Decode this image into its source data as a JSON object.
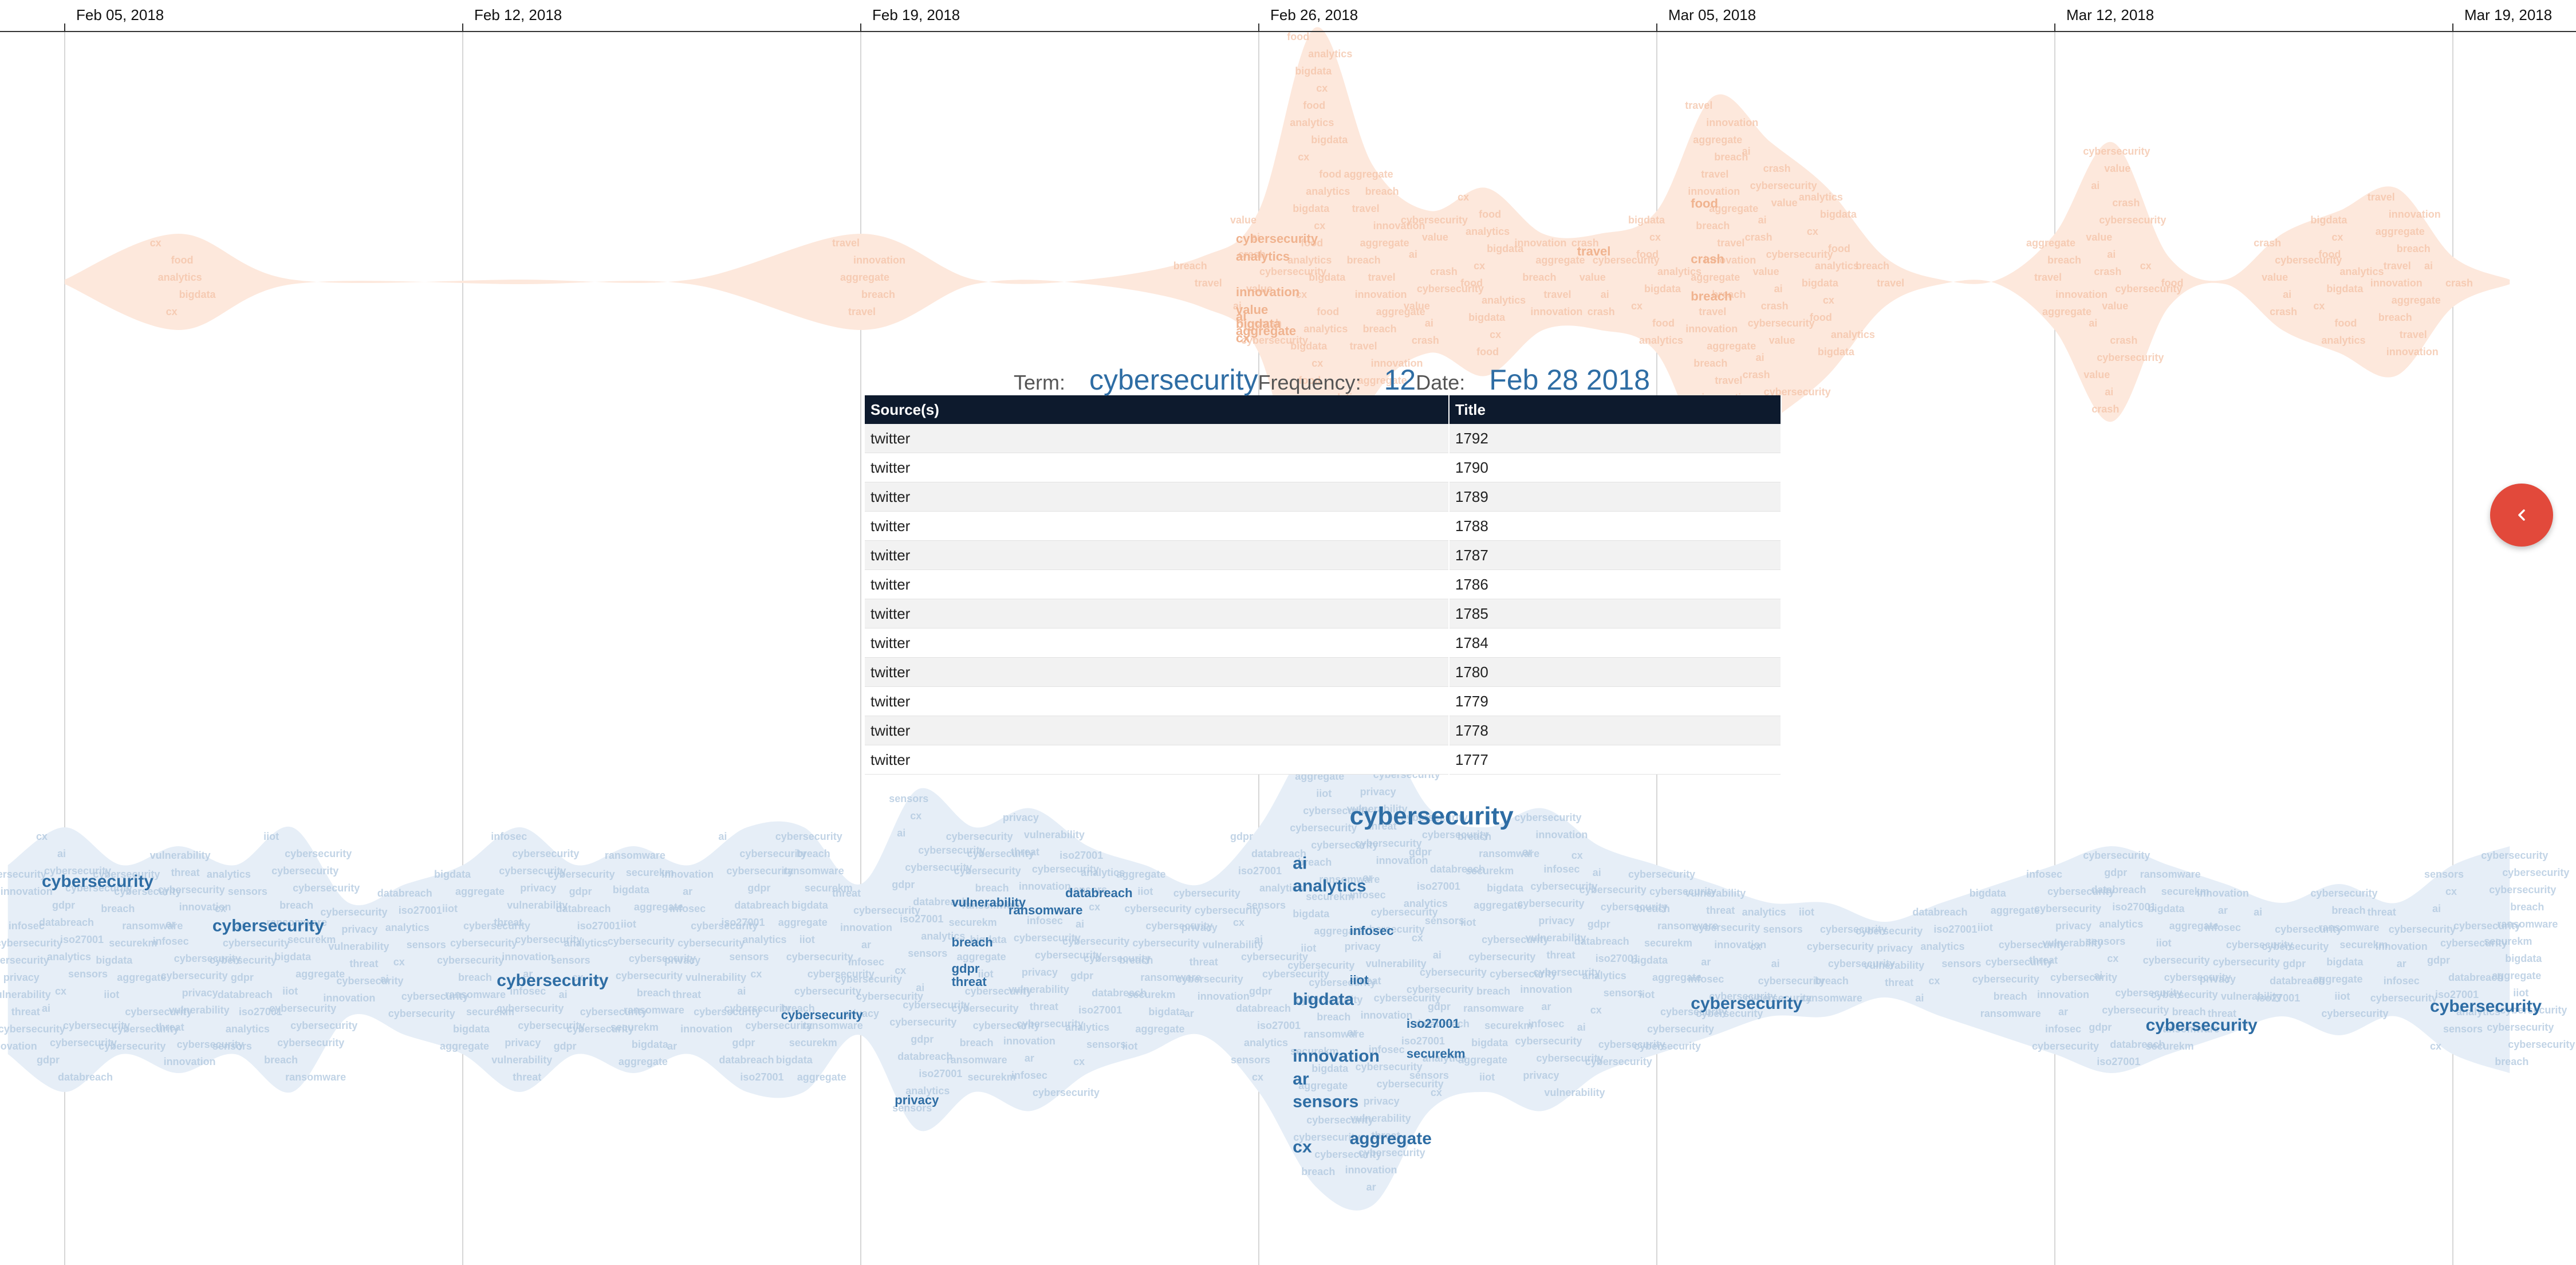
{
  "timeline": {
    "ticks": [
      "Feb 05, 2018",
      "Feb 12, 2018",
      "Feb 19, 2018",
      "Feb 26, 2018",
      "Mar 05, 2018",
      "Mar 12, 2018",
      "Mar 19, 2018"
    ]
  },
  "tooltip": {
    "term_label": "Term:",
    "term": "cybersecurity",
    "frequency_label": "Frequency:",
    "frequency": "12",
    "date_label": "Date:",
    "date": "Feb 28 2018"
  },
  "table": {
    "headers": [
      "Source(s)",
      "Title"
    ],
    "rows": [
      [
        "twitter",
        "1792"
      ],
      [
        "twitter",
        "1790"
      ],
      [
        "twitter",
        "1789"
      ],
      [
        "twitter",
        "1788"
      ],
      [
        "twitter",
        "1787"
      ],
      [
        "twitter",
        "1786"
      ],
      [
        "twitter",
        "1785"
      ],
      [
        "twitter",
        "1784"
      ],
      [
        "twitter",
        "1780"
      ],
      [
        "twitter",
        "1779"
      ],
      [
        "twitter",
        "1778"
      ],
      [
        "twitter",
        "1777"
      ]
    ]
  },
  "controls": {
    "collapse_icon": "chevron-left-icon",
    "collapse_color": "#e2493b"
  },
  "colors": {
    "upper_stream_fill": "#fde8dc",
    "upper_stream_text": "#f3c2a6",
    "lower_stream_fill": "#e6eef7",
    "lower_stream_text": "#aec6de",
    "highlight_term": "#2e6da4",
    "table_header": "#0d1a2d"
  },
  "chart_data": {
    "type": "area",
    "title": "",
    "x_ticks": [
      "Feb 05, 2018",
      "Feb 12, 2018",
      "Feb 19, 2018",
      "Feb 26, 2018",
      "Mar 05, 2018",
      "Mar 12, 2018",
      "Mar 19, 2018"
    ],
    "x_range": [
      "2018-02-04",
      "2018-03-20"
    ],
    "grid": true,
    "streams": [
      {
        "color": "#fde8dc",
        "x": [
          "2018-02-05",
          "2018-02-07",
          "2018-02-09",
          "2018-02-13",
          "2018-02-16",
          "2018-02-19",
          "2018-02-21",
          "2018-02-23",
          "2018-02-25",
          "2018-02-26",
          "2018-02-27",
          "2018-02-28",
          "2018-03-01",
          "2018-03-02",
          "2018-03-03",
          "2018-03-04",
          "2018-03-05",
          "2018-03-06",
          "2018-03-07",
          "2018-03-08",
          "2018-03-09",
          "2018-03-10",
          "2018-03-11",
          "2018-03-12",
          "2018-03-13",
          "2018-03-14",
          "2018-03-15",
          "2018-03-16",
          "2018-03-17",
          "2018-03-18",
          "2018-03-19",
          "2018-03-20"
        ],
        "values": [
          0,
          2,
          0,
          0,
          0,
          2,
          0,
          0,
          1,
          3,
          11,
          5,
          3,
          4,
          2,
          2,
          3,
          8,
          6,
          4,
          1,
          0,
          0,
          2,
          6,
          1,
          0,
          2,
          3,
          4,
          1,
          0
        ],
        "words": [
          {
            "text": "cybersecurity",
            "date": "2018-02-26",
            "size": 1
          },
          {
            "text": "analytics",
            "date": "2018-02-26",
            "size": 1
          },
          {
            "text": "innovation",
            "date": "2018-02-26",
            "size": 1
          },
          {
            "text": "value",
            "date": "2018-02-26",
            "size": 1
          },
          {
            "text": "bigdata",
            "date": "2018-02-26",
            "size": 1
          },
          {
            "text": "aggregate",
            "date": "2018-02-26",
            "size": 1
          },
          {
            "text": "ai",
            "date": "2018-02-26",
            "size": 1
          },
          {
            "text": "cx",
            "date": "2018-02-26",
            "size": 1
          },
          {
            "text": "breach",
            "date": "2018-03-06",
            "size": 1
          },
          {
            "text": "crash",
            "date": "2018-03-06",
            "size": 1
          },
          {
            "text": "food",
            "date": "2018-03-06",
            "size": 1
          },
          {
            "text": "travel",
            "date": "2018-03-04",
            "size": 1
          }
        ]
      },
      {
        "color": "#e6eef7",
        "x": [
          "2018-02-04",
          "2018-02-05",
          "2018-02-06",
          "2018-02-07",
          "2018-02-08",
          "2018-02-09",
          "2018-02-10",
          "2018-02-11",
          "2018-02-12",
          "2018-02-13",
          "2018-02-14",
          "2018-02-15",
          "2018-02-16",
          "2018-02-17",
          "2018-02-18",
          "2018-02-19",
          "2018-02-20",
          "2018-02-21",
          "2018-02-22",
          "2018-02-23",
          "2018-02-24",
          "2018-02-25",
          "2018-02-26",
          "2018-02-27",
          "2018-02-28",
          "2018-03-01",
          "2018-03-02",
          "2018-03-03",
          "2018-03-04",
          "2018-03-05",
          "2018-03-06",
          "2018-03-07",
          "2018-03-08",
          "2018-03-09",
          "2018-03-10",
          "2018-03-11",
          "2018-03-12",
          "2018-03-13",
          "2018-03-14",
          "2018-03-15",
          "2018-03-16",
          "2018-03-17",
          "2018-03-18",
          "2018-03-19",
          "2018-03-20"
        ],
        "values": [
          5,
          7,
          5,
          6,
          5,
          7,
          3,
          4,
          5,
          7,
          5,
          6,
          5,
          7,
          7,
          4,
          9,
          7,
          8,
          6,
          5,
          4,
          7,
          12,
          13,
          8,
          7,
          8,
          6,
          5,
          4,
          3,
          3,
          2,
          3,
          4,
          5,
          6,
          5,
          4,
          3,
          4,
          3,
          5,
          6
        ],
        "words": [
          {
            "text": "cybersecurity",
            "date": "2018-02-28",
            "size": 3
          },
          {
            "text": "analytics",
            "date": "2018-02-27",
            "size": 2
          },
          {
            "text": "bigdata",
            "date": "2018-02-27",
            "size": 2
          },
          {
            "text": "innovation",
            "date": "2018-02-27",
            "size": 2
          },
          {
            "text": "sensors",
            "date": "2018-02-27",
            "size": 2
          },
          {
            "text": "aggregate",
            "date": "2018-02-28",
            "size": 2
          },
          {
            "text": "ar",
            "date": "2018-02-27",
            "size": 2
          },
          {
            "text": "cx",
            "date": "2018-02-27",
            "size": 2
          },
          {
            "text": "iiot",
            "date": "2018-02-28",
            "size": 1
          },
          {
            "text": "infosec",
            "date": "2018-02-28",
            "size": 1
          },
          {
            "text": "ai",
            "date": "2018-02-27",
            "size": 2
          },
          {
            "text": "cybersecurity",
            "date": "2018-02-05",
            "size": 2
          },
          {
            "text": "cybersecurity",
            "date": "2018-02-08",
            "size": 2
          },
          {
            "text": "cybersecurity",
            "date": "2018-02-13",
            "size": 2
          },
          {
            "text": "cybersecurity",
            "date": "2018-02-18",
            "size": 1
          },
          {
            "text": "cybersecurity",
            "date": "2018-03-06",
            "size": 2
          },
          {
            "text": "cybersecurity",
            "date": "2018-03-14",
            "size": 2
          },
          {
            "text": "cybersecurity",
            "date": "2018-03-19",
            "size": 2
          },
          {
            "text": "privacy",
            "date": "2018-02-20",
            "size": 1
          },
          {
            "text": "gdpr",
            "date": "2018-02-21",
            "size": 1
          },
          {
            "text": "breach",
            "date": "2018-02-21",
            "size": 1
          },
          {
            "text": "vulnerability",
            "date": "2018-02-21",
            "size": 1
          },
          {
            "text": "databreach",
            "date": "2018-02-23",
            "size": 1
          },
          {
            "text": "ransomware",
            "date": "2018-02-22",
            "size": 1
          },
          {
            "text": "threat",
            "date": "2018-02-21",
            "size": 1
          },
          {
            "text": "iso27001",
            "date": "2018-03-01",
            "size": 1
          },
          {
            "text": "securekm",
            "date": "2018-03-01",
            "size": 1
          }
        ]
      }
    ]
  }
}
